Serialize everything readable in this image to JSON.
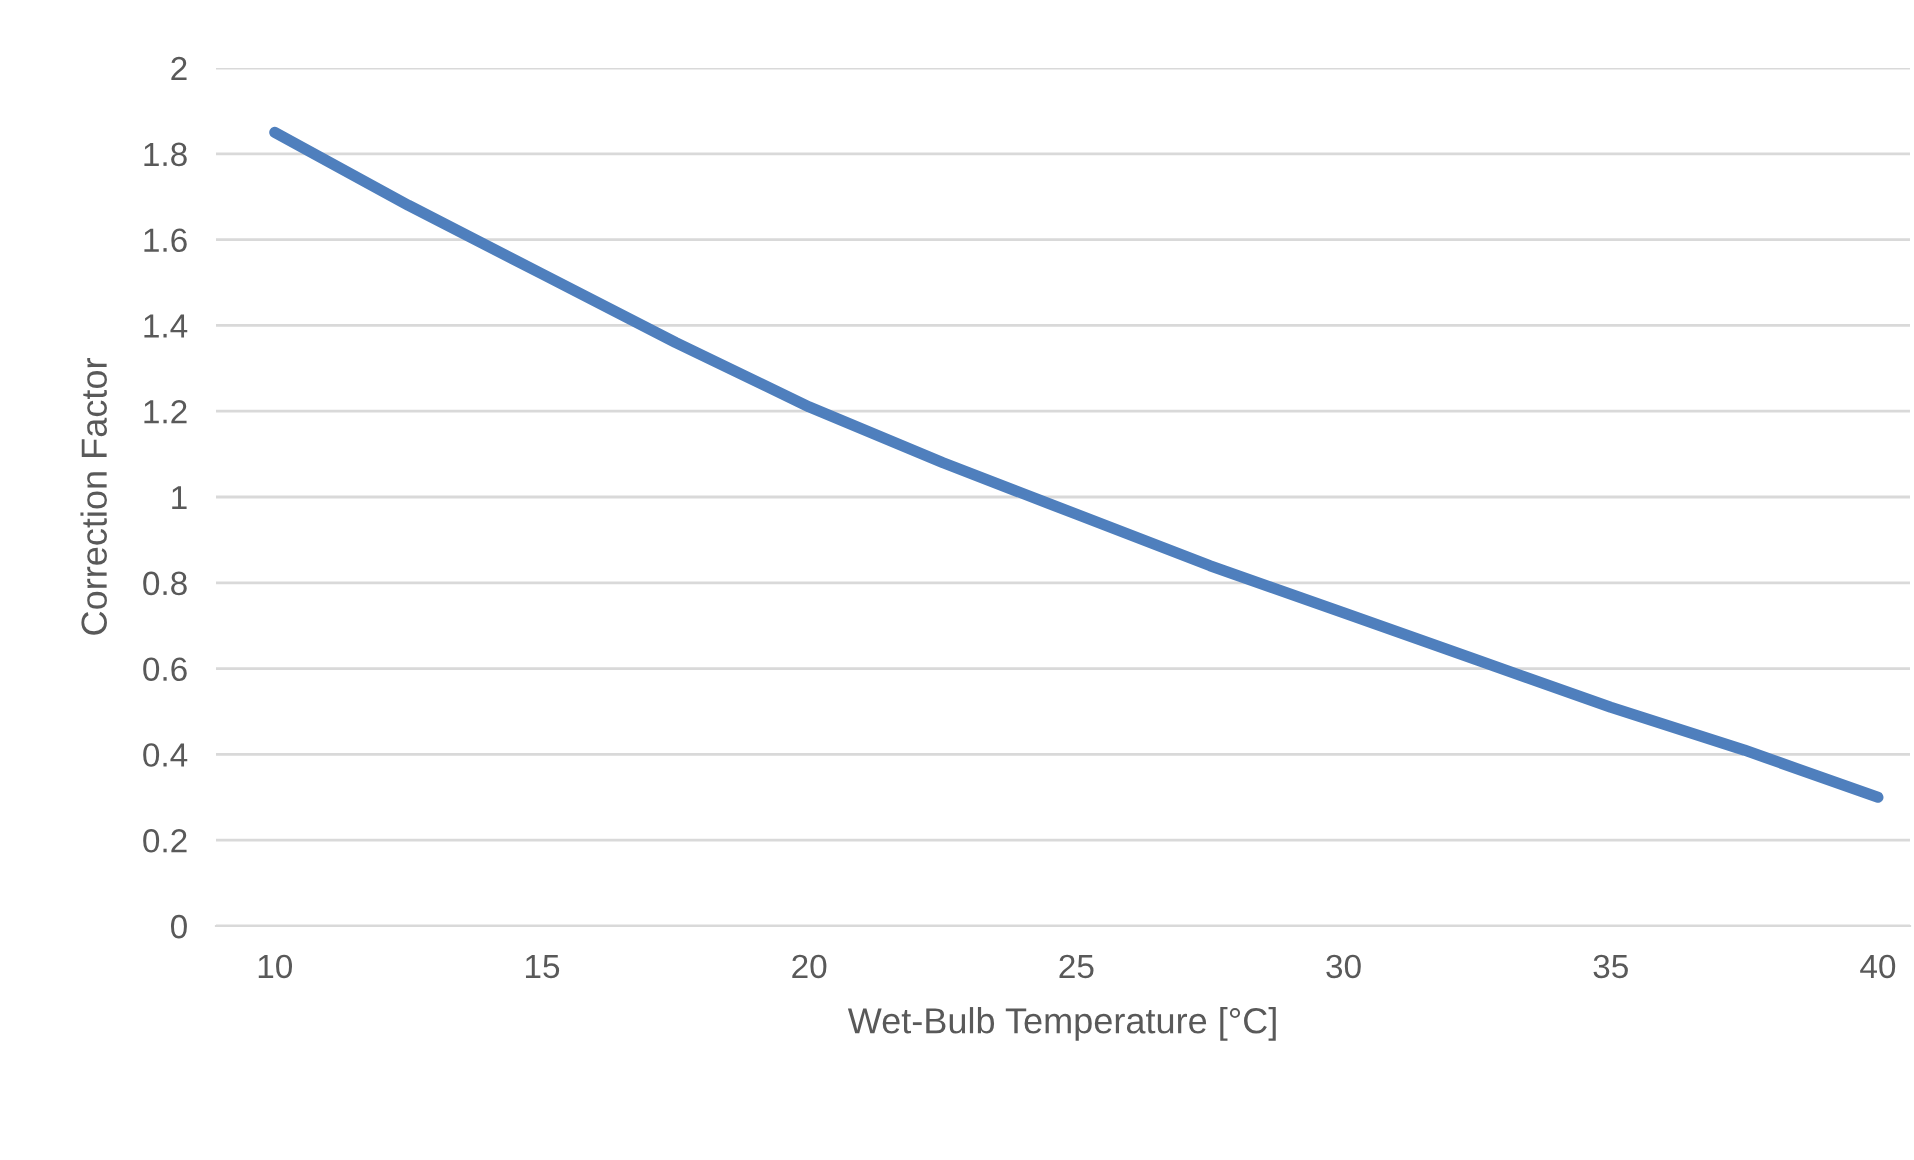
{
  "chart_data": {
    "type": "line",
    "xlabel": "Wet-Bulb Temperature [°C]",
    "ylabel": "Correction Factor",
    "x": [
      10,
      12.5,
      15,
      17.5,
      20,
      22.5,
      25,
      27.5,
      30,
      32.5,
      35,
      37.5,
      40
    ],
    "series": [
      {
        "color": "#4f7fbd",
        "values": [
          1.85,
          1.68,
          1.52,
          1.36,
          1.21,
          1.08,
          0.96,
          0.84,
          0.73,
          0.62,
          0.51,
          0.41,
          0.3
        ]
      }
    ],
    "xlim": [
      8.9,
      40.6
    ],
    "xticks": [
      10,
      15,
      20,
      25,
      30,
      35,
      40
    ],
    "ylim": [
      0,
      2
    ],
    "yticks": [
      0,
      {
        "value": 0.2,
        "label": "0.2"
      },
      {
        "value": 0.4,
        "label": "0.4"
      },
      {
        "value": 0.6,
        "label": "0.6"
      },
      {
        "value": 0.8,
        "label": "0.8"
      },
      1,
      {
        "value": 1.2,
        "label": "1.2"
      },
      {
        "value": 1.4,
        "label": "1.4"
      },
      {
        "value": 1.6,
        "label": "1.6"
      },
      {
        "value": 1.8,
        "label": "1.8"
      },
      2
    ],
    "grid": "y",
    "line_style": "solid"
  }
}
